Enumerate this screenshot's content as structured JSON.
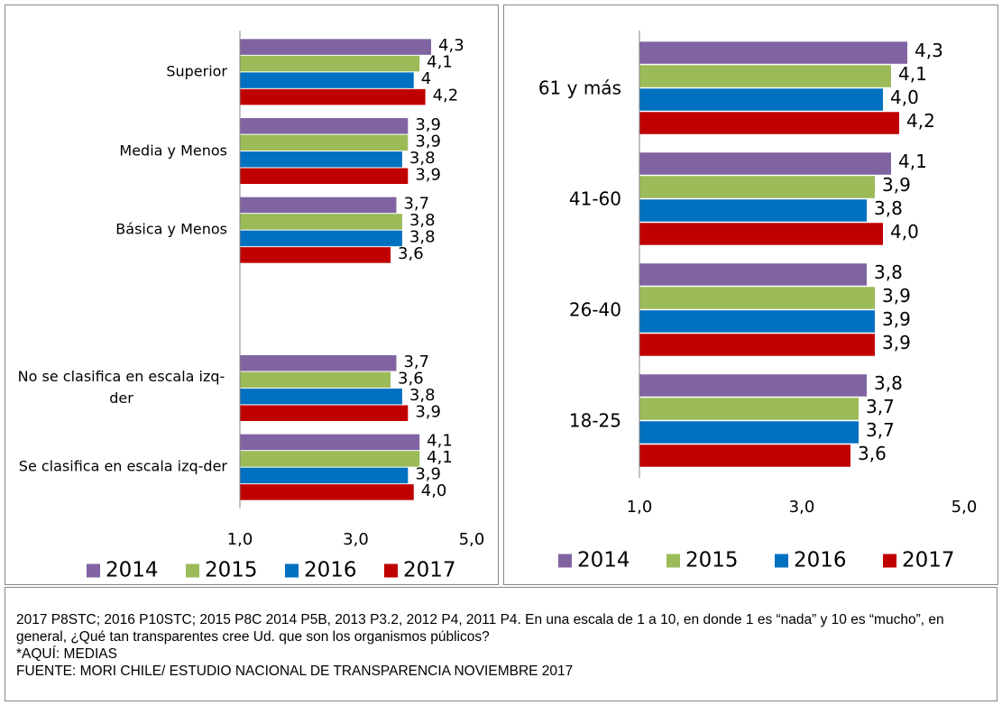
{
  "chart_data": [
    {
      "type": "hbar",
      "categories": [
        "Superior",
        "Media y Menos",
        "Básica y Menos",
        null,
        "No se clasifica en escala izq-der",
        "Se clasifica en escala izq-der"
      ],
      "series": [
        {
          "name": "2014",
          "color": "#8064a2",
          "values": [
            4.3,
            3.9,
            3.7,
            null,
            3.7,
            4.1
          ],
          "value_labels": [
            "4,3",
            "3,9",
            "3,7",
            null,
            "3,7",
            "4,1"
          ]
        },
        {
          "name": "2015",
          "color": "#9bbb59",
          "values": [
            4.1,
            3.9,
            3.8,
            null,
            3.6,
            4.1
          ],
          "value_labels": [
            "4,1",
            "3,9",
            "3,8",
            null,
            "3,6",
            "4,1"
          ]
        },
        {
          "name": "2016",
          "color": "#0070c0",
          "values": [
            4,
            3.8,
            3.8,
            null,
            3.8,
            3.9
          ],
          "value_labels": [
            "4",
            "3,8",
            "3,8",
            null,
            "3,8",
            "3,9"
          ]
        },
        {
          "name": "2017",
          "color": "#c00000",
          "values": [
            4.2,
            3.9,
            3.6,
            null,
            3.9,
            4.0
          ],
          "value_labels": [
            "4,2",
            "3,9",
            "3,6",
            null,
            "3,9",
            "4,0"
          ]
        }
      ],
      "xlim": [
        1,
        5
      ],
      "xticks": [
        {
          "value": 1,
          "label": "1,0"
        },
        {
          "value": 3,
          "label": "3,0"
        },
        {
          "value": 5,
          "label": "5,0"
        }
      ],
      "legend": "bottom"
    },
    {
      "type": "hbar",
      "categories": [
        "61 y más",
        "41-60",
        "26-40",
        "18-25"
      ],
      "series": [
        {
          "name": "2014",
          "color": "#8064a2",
          "values": [
            4.3,
            4.1,
            3.8,
            3.8
          ],
          "value_labels": [
            "4,3",
            "4,1",
            "3,8",
            "3,8"
          ]
        },
        {
          "name": "2015",
          "color": "#9bbb59",
          "values": [
            4.1,
            3.9,
            3.9,
            3.7
          ],
          "value_labels": [
            "4,1",
            "3,9",
            "3,9",
            "3,7"
          ]
        },
        {
          "name": "2016",
          "color": "#0070c0",
          "values": [
            4.0,
            3.8,
            3.9,
            3.7
          ],
          "value_labels": [
            "4,0",
            "3,8",
            "3,9",
            "3,7"
          ]
        },
        {
          "name": "2017",
          "color": "#c00000",
          "values": [
            4.2,
            4.0,
            3.9,
            3.6
          ],
          "value_labels": [
            "4,2",
            "4,0",
            "3,9",
            "3,6"
          ]
        }
      ],
      "xlim": [
        1,
        5
      ],
      "xticks": [
        {
          "value": 1,
          "label": "1,0"
        },
        {
          "value": 3,
          "label": "3,0"
        },
        {
          "value": 5,
          "label": "5,0"
        }
      ],
      "legend": "bottom"
    }
  ],
  "footnote": [
    "2017 P8STC; 2016 P10STC; 2015 P8C 2014 P5B, 2013 P3.2, 2012 P4, 2011 P4. En una escala de 1 a 10, en donde 1 es “nada” y 10 es “mucho”, en general, ¿Qué tan transparentes cree Ud. que son los organismos públicos?",
    "*AQUÍ: MEDIAS",
    "FUENTE: MORI CHILE/ ESTUDIO NACIONAL DE TRANSPARENCIA NOVIEMBRE 2017"
  ]
}
